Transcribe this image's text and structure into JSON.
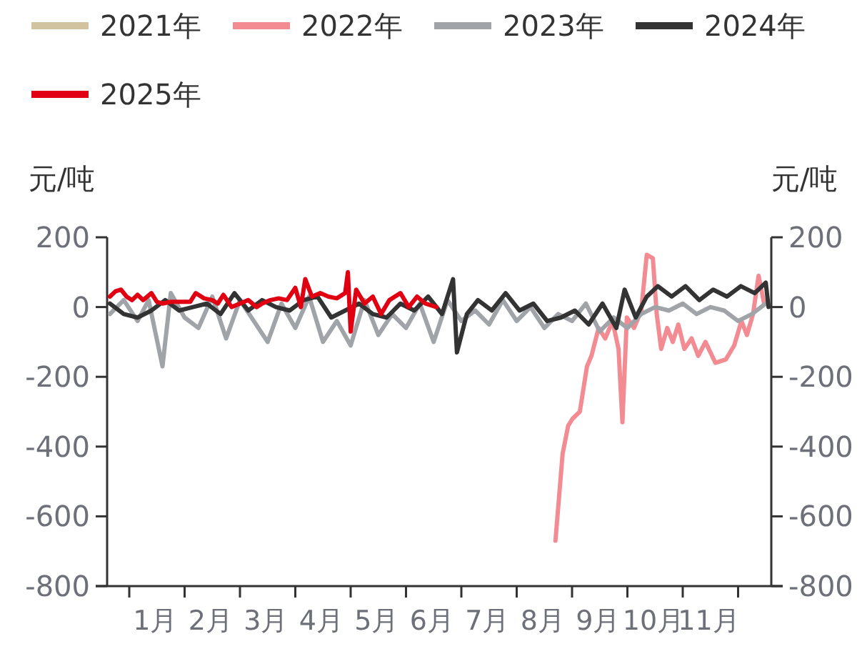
{
  "chart_data": {
    "type": "line",
    "ylabel": "元/吨",
    "y2label": "元/吨",
    "legend": "top",
    "marker": "none",
    "line_style": "solid",
    "grid": false,
    "xlim": [
      0.6,
      12.6
    ],
    "xticks": [
      {
        "value": 1,
        "label": null
      },
      {
        "value": 1.47,
        "label": "1月"
      },
      {
        "value": 2,
        "label": null
      },
      {
        "value": 2.47,
        "label": "2月"
      },
      {
        "value": 3,
        "label": null
      },
      {
        "value": 3.47,
        "label": "3月"
      },
      {
        "value": 4,
        "label": null
      },
      {
        "value": 4.47,
        "label": "4月"
      },
      {
        "value": 5,
        "label": null
      },
      {
        "value": 5.47,
        "label": "5月"
      },
      {
        "value": 6,
        "label": null
      },
      {
        "value": 6.47,
        "label": "6月"
      },
      {
        "value": 7,
        "label": null
      },
      {
        "value": 7.47,
        "label": "7月"
      },
      {
        "value": 8,
        "label": null
      },
      {
        "value": 8.47,
        "label": "8月"
      },
      {
        "value": 9,
        "label": null
      },
      {
        "value": 9.47,
        "label": "9月"
      },
      {
        "value": 10,
        "label": null
      },
      {
        "value": 10.47,
        "label": "10月"
      },
      {
        "value": 11,
        "label": null
      },
      {
        "value": 11.47,
        "label": "11月"
      },
      {
        "value": 12,
        "label": null
      }
    ],
    "ylim": [
      -800,
      200
    ],
    "yticks": [
      -800,
      -600,
      -400,
      -200,
      0,
      200
    ],
    "y2lim": [
      -800,
      200
    ],
    "y2ticks": [
      -800,
      -600,
      -400,
      -200,
      0,
      200
    ],
    "series": [
      {
        "name": "2021年",
        "color": "#d2c3a0"
      },
      {
        "name": "2022年",
        "color": "#f28b92",
        "x": [
          8.7,
          8.83,
          8.93,
          9.01,
          9.14,
          9.27,
          9.35,
          9.48,
          9.6,
          9.73,
          9.84,
          9.91,
          9.99,
          10.12,
          10.25,
          10.35,
          10.46,
          10.53,
          10.61,
          10.72,
          10.82,
          10.92,
          11.03,
          11.16,
          11.28,
          11.41,
          11.59,
          11.78,
          11.93,
          12.06,
          12.16,
          12.27,
          12.37,
          12.47
        ],
        "values": [
          -670,
          -420,
          -340,
          -320,
          -300,
          -170,
          -140,
          -60,
          -90,
          -40,
          -120,
          -330,
          -30,
          -60,
          -10,
          150,
          140,
          -20,
          -120,
          -60,
          -100,
          -50,
          -120,
          -90,
          -140,
          -100,
          -160,
          -150,
          -110,
          -40,
          -80,
          -20,
          90,
          10
        ]
      },
      {
        "name": "2023年",
        "color": "#a0a4a8",
        "x": [
          0.65,
          0.9,
          1.15,
          1.35,
          1.6,
          1.75,
          2,
          2.25,
          2.5,
          2.75,
          3,
          3.25,
          3.5,
          3.75,
          4,
          4.25,
          4.5,
          4.75,
          5,
          5.25,
          5.5,
          5.75,
          6,
          6.25,
          6.5,
          6.75,
          7,
          7.25,
          7.5,
          7.75,
          8,
          8.25,
          8.5,
          8.75,
          9,
          9.25,
          9.5,
          9.75,
          10,
          10.25,
          10.5,
          10.75,
          11,
          11.25,
          11.5,
          11.75,
          12,
          12.25,
          12.5
        ],
        "values": [
          -20,
          20,
          -40,
          20,
          -170,
          40,
          -30,
          -60,
          30,
          -90,
          20,
          -40,
          -100,
          10,
          -60,
          30,
          -100,
          -40,
          -110,
          20,
          -80,
          -20,
          -60,
          10,
          -100,
          20,
          -40,
          -10,
          -50,
          20,
          -40,
          0,
          -60,
          -20,
          -40,
          10,
          -70,
          -30,
          -60,
          -20,
          0,
          -10,
          10,
          -20,
          0,
          -10,
          -40,
          -20,
          10
        ]
      },
      {
        "name": "2024年",
        "color": "#333333",
        "x": [
          0.65,
          0.9,
          1.15,
          1.4,
          1.65,
          1.9,
          2.15,
          2.4,
          2.65,
          2.9,
          3.15,
          3.4,
          3.65,
          3.9,
          4.15,
          4.4,
          4.65,
          4.9,
          5.15,
          5.4,
          5.65,
          5.9,
          6.15,
          6.4,
          6.65,
          6.85,
          6.92,
          7.1,
          7.3,
          7.55,
          7.8,
          8.05,
          8.3,
          8.55,
          8.8,
          9.05,
          9.3,
          9.55,
          9.8,
          9.95,
          10.15,
          10.35,
          10.55,
          10.8,
          11.05,
          11.3,
          11.55,
          11.8,
          12.05,
          12.3,
          12.5,
          12.55
        ],
        "values": [
          10,
          -20,
          -30,
          -10,
          20,
          -10,
          0,
          10,
          -20,
          40,
          -10,
          20,
          0,
          -10,
          20,
          30,
          -30,
          -10,
          10,
          -20,
          -30,
          10,
          -10,
          30,
          -20,
          80,
          -130,
          -20,
          20,
          -10,
          40,
          -10,
          10,
          -40,
          -30,
          -10,
          -50,
          10,
          -60,
          50,
          -30,
          30,
          60,
          30,
          60,
          20,
          50,
          30,
          60,
          40,
          70,
          0
        ]
      },
      {
        "name": "2025年",
        "color": "#e00012",
        "x": [
          0.65,
          0.75,
          0.85,
          0.95,
          1.05,
          1.15,
          1.25,
          1.4,
          1.5,
          1.6,
          1.75,
          1.9,
          2.1,
          2.2,
          2.35,
          2.5,
          2.6,
          2.7,
          2.85,
          3,
          3.15,
          3.3,
          3.4,
          3.55,
          3.7,
          3.85,
          4,
          4.1,
          4.18,
          4.3,
          4.45,
          4.6,
          4.75,
          4.9,
          4.95,
          5.0,
          5.1,
          5.25,
          5.4,
          5.55,
          5.7,
          5.9,
          6.05,
          6.2,
          6.35,
          6.55
        ],
        "values": [
          30,
          45,
          50,
          30,
          20,
          35,
          20,
          40,
          15,
          10,
          15,
          15,
          15,
          40,
          25,
          20,
          10,
          35,
          0,
          10,
          20,
          0,
          10,
          20,
          25,
          20,
          55,
          0,
          80,
          30,
          40,
          30,
          25,
          40,
          100,
          -70,
          50,
          10,
          30,
          -20,
          20,
          40,
          0,
          30,
          10,
          0
        ]
      }
    ]
  }
}
